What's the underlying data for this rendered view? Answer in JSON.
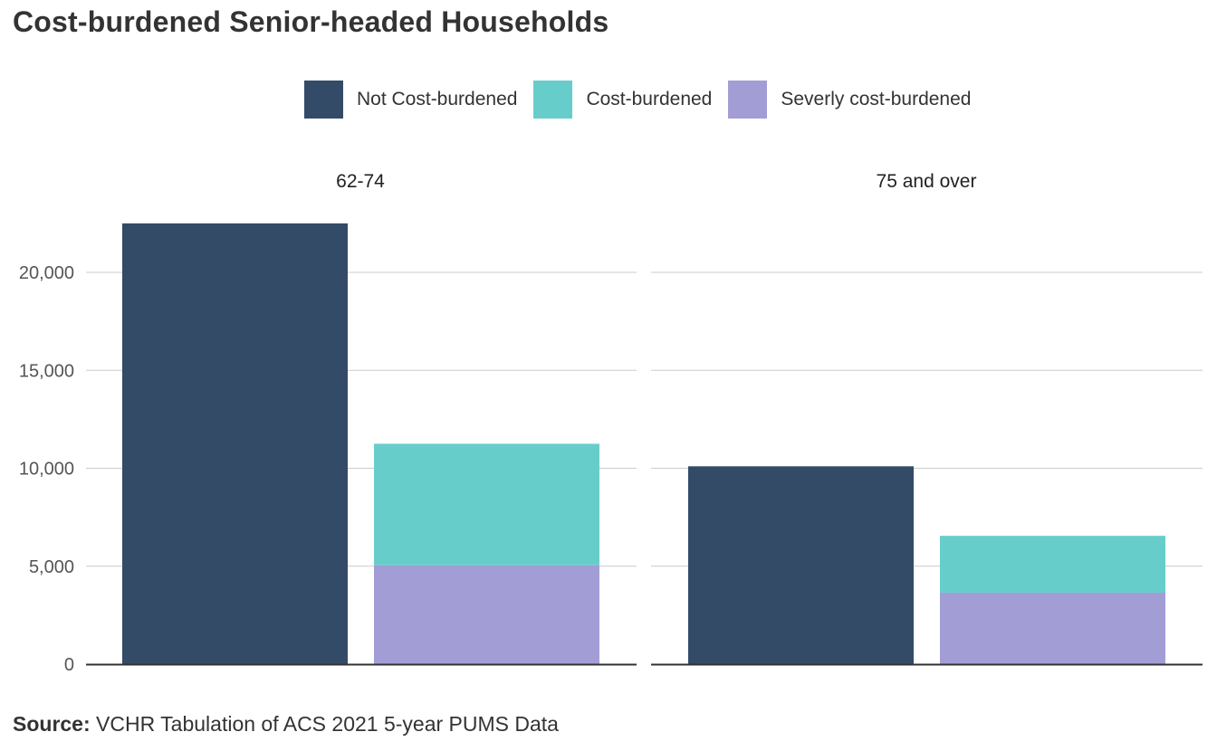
{
  "title": "Cost-burdened Senior-headed Households",
  "source": {
    "label": "Source:",
    "text": "VCHR Tabulation of ACS 2021 5-year PUMS Data"
  },
  "colors": {
    "not_cost_burdened": "#344b68",
    "cost_burdened": "#67cdcb",
    "severely_cost_burdened": "#a39dd6",
    "grid": "#cccccc",
    "axis": "#333333"
  },
  "legend": [
    {
      "label": "Not Cost-burdened",
      "color_key": "not_cost_burdened"
    },
    {
      "label": "Cost-burdened",
      "color_key": "cost_burdened"
    },
    {
      "label": "Severly cost-burdened",
      "color_key": "severely_cost_burdened"
    }
  ],
  "chart_data": {
    "type": "bar",
    "title": "Cost-burdened Senior-headed Households",
    "xlabel": "",
    "ylabel": "",
    "ylim": [
      0,
      23000
    ],
    "yticks": [
      0,
      5000,
      10000,
      15000,
      20000
    ],
    "ytick_labels": [
      "0",
      "5,000",
      "10,000",
      "15,000",
      "20,000"
    ],
    "grid": true,
    "legend_position": "top",
    "facets": [
      {
        "label": "62-74",
        "bars": [
          {
            "name": "Not Cost-burdened",
            "segments": [
              {
                "series": "not_cost_burdened",
                "value": 22500
              }
            ]
          },
          {
            "name": "Cost-burdened",
            "segments": [
              {
                "series": "severely_cost_burdened",
                "value": 5050
              },
              {
                "series": "cost_burdened",
                "value": 6200
              }
            ]
          }
        ]
      },
      {
        "label": "75 and over",
        "bars": [
          {
            "name": "Not Cost-burdened",
            "segments": [
              {
                "series": "not_cost_burdened",
                "value": 10100
              }
            ]
          },
          {
            "name": "Cost-burdened",
            "segments": [
              {
                "series": "severely_cost_burdened",
                "value": 3650
              },
              {
                "series": "cost_burdened",
                "value": 2900
              }
            ]
          }
        ]
      }
    ]
  }
}
